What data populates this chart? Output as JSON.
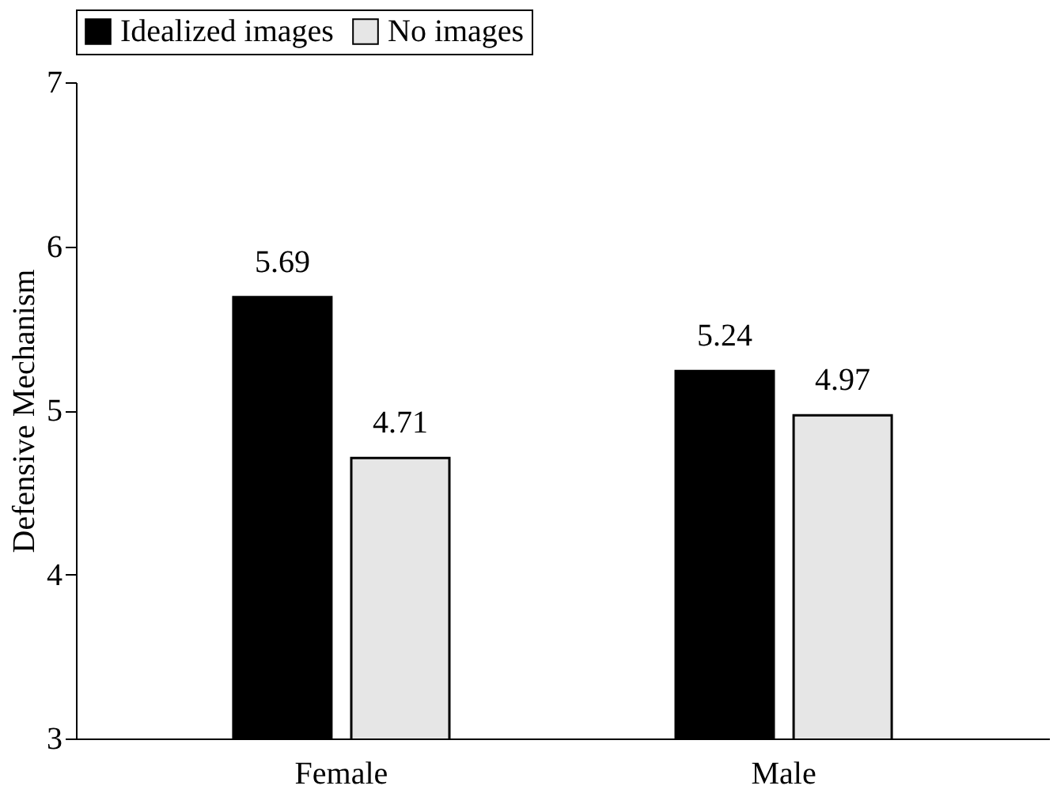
{
  "chart_data": {
    "type": "bar",
    "ylabel": "Defensive Mechanism",
    "categories": [
      "Female",
      "Male"
    ],
    "series": [
      {
        "name": "Idealized images",
        "color": "#000000",
        "values": [
          5.69,
          5.24
        ]
      },
      {
        "name": "No images",
        "color": "#e6e6e6",
        "values": [
          4.71,
          4.97
        ]
      }
    ],
    "ylim": [
      3,
      7
    ],
    "yticks": [
      3,
      4,
      5,
      6,
      7
    ],
    "grid": false,
    "legend": "top",
    "data_labels": true
  }
}
